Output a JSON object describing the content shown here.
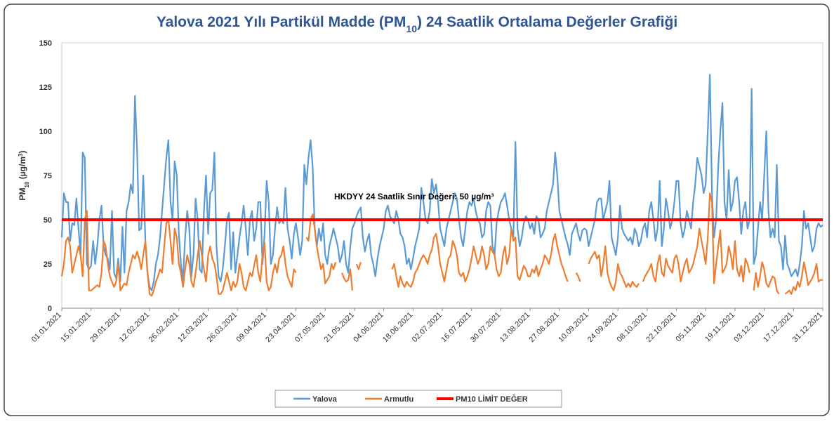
{
  "chart_data": {
    "type": "line",
    "title_parts": [
      "Yalova 2021 Yılı Partikül Madde (PM",
      "10",
      ") 24 Saatlik Ortalama Değerler Grafiği"
    ],
    "y_label_parts": [
      "PM",
      "10",
      "  (µg/m",
      "3",
      ")"
    ],
    "categories": [
      "01.01.2021",
      null,
      null,
      null,
      null,
      null,
      null,
      null,
      null,
      null,
      null,
      null,
      null,
      null,
      "15.01.2021",
      null,
      null,
      null,
      null,
      null,
      null,
      null,
      null,
      null,
      null,
      null,
      null,
      null,
      "29.01.2021",
      null,
      null,
      null,
      null,
      null,
      null,
      null,
      null,
      null,
      null,
      null,
      null,
      null,
      "12.02.2021",
      null,
      null,
      null,
      null,
      null,
      null,
      null,
      null,
      null,
      null,
      null,
      null,
      null,
      "26.02.2021",
      null,
      null,
      null,
      null,
      null,
      null,
      null,
      null,
      null,
      null,
      null,
      null,
      null,
      "12.03.2021",
      null,
      null,
      null,
      null,
      null,
      null,
      null,
      null,
      null,
      null,
      null,
      null,
      null,
      "26.03.2021",
      null,
      null,
      null,
      null,
      null,
      null,
      null,
      null,
      null,
      null,
      null,
      null,
      null,
      "09.04.2021",
      null,
      null,
      null,
      null,
      null,
      null,
      null,
      null,
      null,
      null,
      null,
      null,
      null,
      "23.04.2021",
      null,
      null,
      null,
      null,
      null,
      null,
      null,
      null,
      null,
      null,
      null,
      null,
      null,
      "07.05.2021",
      null,
      null,
      null,
      null,
      null,
      null,
      null,
      null,
      null,
      null,
      null,
      null,
      null,
      "21.05.2021",
      null,
      null,
      null,
      null,
      null,
      null,
      null,
      null,
      null,
      null,
      null,
      null,
      null,
      "04.06.2021",
      null,
      null,
      null,
      null,
      null,
      null,
      null,
      null,
      null,
      null,
      null,
      null,
      null,
      "18.06.2021",
      null,
      null,
      null,
      null,
      null,
      null,
      null,
      null,
      null,
      null,
      null,
      null,
      null,
      "02.07.2021",
      null,
      null,
      null,
      null,
      null,
      null,
      null,
      null,
      null,
      null,
      null,
      null,
      null,
      "16.07.2021",
      null,
      null,
      null,
      null,
      null,
      null,
      null,
      null,
      null,
      null,
      null,
      null,
      null,
      "30.07.2021",
      null,
      null,
      null,
      null,
      null,
      null,
      null,
      null,
      null,
      null,
      null,
      null,
      null,
      "13.08.2021",
      null,
      null,
      null,
      null,
      null,
      null,
      null,
      null,
      null,
      null,
      null,
      null,
      null,
      "27.08.2021",
      null,
      null,
      null,
      null,
      null,
      null,
      null,
      null,
      null,
      null,
      null,
      null,
      null,
      "10.09.2021",
      null,
      null,
      null,
      null,
      null,
      null,
      null,
      null,
      null,
      null,
      null,
      null,
      null,
      "24.09.2021",
      null,
      null,
      null,
      null,
      null,
      null,
      null,
      null,
      null,
      null,
      null,
      null,
      null,
      "08.10.2021",
      null,
      null,
      null,
      null,
      null,
      null,
      null,
      null,
      null,
      null,
      null,
      null,
      null,
      "22.10.2021",
      null,
      null,
      null,
      null,
      null,
      null,
      null,
      null,
      null,
      null,
      null,
      null,
      null,
      "05.11.2021",
      null,
      null,
      null,
      null,
      null,
      null,
      null,
      null,
      null,
      null,
      null,
      null,
      null,
      "19.11.2021",
      null,
      null,
      null,
      null,
      null,
      null,
      null,
      null,
      null,
      null,
      null,
      null,
      null,
      "03.12.2021",
      null,
      null,
      null,
      null,
      null,
      null,
      null,
      null,
      null,
      null,
      null,
      null,
      null,
      "17.12.2021",
      null,
      null,
      null,
      null,
      null,
      null,
      null,
      null,
      null,
      null,
      null,
      null,
      null,
      "31.12.2021"
    ],
    "series": [
      {
        "name": "Yalova",
        "color": "#5b9bd5",
        "values": [
          40,
          65,
          60,
          60,
          38,
          48,
          47,
          62,
          45,
          30,
          88,
          85,
          25,
          22,
          24,
          38,
          25,
          35,
          50,
          58,
          35,
          30,
          28,
          22,
          55,
          20,
          17,
          28,
          15,
          46,
          20,
          55,
          60,
          70,
          65,
          120,
          90,
          44,
          45,
          75,
          38,
          20,
          12,
          10,
          15,
          25,
          30,
          40,
          55,
          70,
          85,
          95,
          60,
          50,
          83,
          75,
          42,
          25,
          16,
          40,
          55,
          45,
          18,
          30,
          62,
          50,
          22,
          20,
          55,
          75,
          42,
          65,
          67,
          88,
          35,
          18,
          15,
          22,
          35,
          50,
          54,
          22,
          43,
          20,
          30,
          40,
          48,
          58,
          45,
          30,
          50,
          55,
          38,
          45,
          60,
          60,
          25,
          42,
          72,
          60,
          25,
          30,
          45,
          57,
          48,
          50,
          48,
          68,
          45,
          38,
          28,
          42,
          48,
          40,
          30,
          38,
          81,
          70,
          85,
          95,
          80,
          45,
          35,
          45,
          38,
          48,
          30,
          25,
          35,
          40,
          45,
          40,
          35,
          26,
          30,
          38,
          25,
          20,
          35,
          45,
          48,
          52,
          55,
          57,
          40,
          32,
          38,
          42,
          30,
          25,
          18,
          28,
          35,
          40,
          45,
          55,
          58,
          52,
          50,
          48,
          55,
          50,
          42,
          40,
          35,
          25,
          28,
          22,
          28,
          35,
          40,
          45,
          68,
          60,
          50,
          48,
          55,
          73,
          65,
          70,
          60,
          45,
          40,
          35,
          45,
          50,
          55,
          60,
          65,
          62,
          50,
          40,
          35,
          45,
          55,
          60,
          58,
          62,
          55,
          50,
          48,
          40,
          42,
          55,
          60,
          58,
          35,
          30,
          48,
          55,
          60,
          62,
          65,
          58,
          50,
          45,
          40,
          94,
          45,
          35,
          40,
          48,
          52,
          50,
          45,
          48,
          42,
          52,
          50,
          40,
          42,
          45,
          55,
          60,
          65,
          70,
          88,
          75,
          55,
          50,
          45,
          40,
          36,
          30,
          42,
          45,
          48,
          42,
          38,
          44,
          45,
          44,
          35,
          40,
          45,
          50,
          60,
          62,
          62,
          50,
          55,
          60,
          72,
          40,
          35,
          30,
          40,
          58,
          45,
          42,
          40,
          38,
          40,
          36,
          45,
          42,
          35,
          38,
          45,
          48,
          40,
          55,
          60,
          50,
          38,
          45,
          72,
          35,
          45,
          62,
          55,
          45,
          50,
          60,
          72,
          72,
          48,
          40,
          45,
          55,
          50,
          45,
          60,
          70,
          85,
          80,
          75,
          65,
          70,
          100,
          132,
          65,
          40,
          50,
          80,
          100,
          116,
          60,
          50,
          78,
          55,
          60,
          72,
          74,
          60,
          42,
          55,
          60,
          45,
          50,
          124,
          25,
          30,
          45,
          60,
          50,
          75,
          100,
          55,
          40,
          45,
          40,
          81,
          38,
          35,
          22,
          41,
          25,
          22,
          18,
          20,
          22,
          18,
          25,
          35,
          55,
          45,
          48,
          40,
          32,
          35,
          45,
          48,
          46,
          47
        ]
      },
      {
        "name": "Armutlu",
        "color": "#ed7d31",
        "values": [
          18,
          25,
          38,
          40,
          35,
          20,
          25,
          30,
          35,
          30,
          18,
          50,
          55,
          10,
          10,
          11,
          12,
          13,
          12,
          20,
          38,
          35,
          25,
          18,
          15,
          12,
          15,
          25,
          10,
          12,
          14,
          13,
          20,
          25,
          30,
          28,
          32,
          28,
          22,
          30,
          38,
          20,
          8,
          7,
          10,
          15,
          18,
          22,
          20,
          35,
          48,
          50,
          38,
          25,
          45,
          40,
          25,
          20,
          12,
          22,
          30,
          25,
          15,
          12,
          20,
          30,
          38,
          30,
          22,
          15,
          30,
          35,
          28,
          25,
          18,
          8,
          8,
          10,
          15,
          20,
          15,
          10,
          15,
          12,
          15,
          25,
          20,
          12,
          10,
          15,
          20,
          18,
          24,
          30,
          20,
          15,
          30,
          37,
          15,
          10,
          12,
          20,
          25,
          20,
          28,
          30,
          35,
          25,
          18,
          15,
          12,
          22,
          20,
          null,
          17,
          null,
          null,
          40,
          38,
          50,
          53,
          45,
          35,
          28,
          22,
          25,
          14,
          16,
          18,
          25,
          22,
          26,
          null,
          null,
          20,
          17,
          15,
          16,
          22,
          10,
          null,
          25,
          22,
          26,
          null,
          null,
          null,
          null,
          null,
          null,
          null,
          null,
          null,
          null,
          null,
          null,
          null,
          null,
          22,
          25,
          18,
          12,
          18,
          14,
          12,
          15,
          13,
          12,
          15,
          20,
          22,
          25,
          28,
          30,
          28,
          25,
          30,
          33,
          40,
          42,
          35,
          25,
          20,
          15,
          22,
          28,
          30,
          38,
          35,
          30,
          20,
          18,
          20,
          15,
          18,
          22,
          28,
          35,
          30,
          25,
          28,
          35,
          30,
          22,
          25,
          35,
          32,
          30,
          22,
          18,
          20,
          30,
          35,
          25,
          30,
          45,
          38,
          40,
          18,
          16,
          20,
          24,
          22,
          18,
          18,
          22,
          20,
          24,
          18,
          22,
          25,
          30,
          28,
          25,
          30,
          38,
          42,
          35,
          30,
          25,
          22,
          18,
          15,
          null,
          null,
          null,
          20,
          18,
          15,
          null,
          null,
          null,
          25,
          28,
          30,
          32,
          28,
          30,
          18,
          25,
          35,
          20,
          15,
          12,
          10,
          15,
          25,
          20,
          18,
          15,
          12,
          14,
          12,
          15,
          13,
          12,
          14,
          null,
          15,
          18,
          20,
          22,
          25,
          18,
          15,
          25,
          30,
          20,
          18,
          28,
          24,
          22,
          20,
          28,
          30,
          25,
          15,
          20,
          25,
          28,
          20,
          22,
          25,
          30,
          35,
          45,
          38,
          32,
          25,
          40,
          65,
          60,
          14,
          25,
          35,
          44,
          20,
          22,
          25,
          35,
          30,
          22,
          38,
          22,
          18,
          24,
          15,
          28,
          25,
          20,
          null,
          10,
          20,
          12,
          18,
          26,
          22,
          14,
          12,
          15,
          18,
          17,
          10,
          8,
          null,
          null,
          8,
          9,
          10,
          8,
          12,
          10,
          15,
          12,
          18,
          26,
          20,
          13,
          15,
          17,
          20,
          25,
          15,
          16,
          16
        ]
      }
    ],
    "limit": {
      "name": "PM10 LİMİT DEĞER",
      "value": 50,
      "color": "#ff0000",
      "label": "HKDYY 24 Saatlik Sınır Değeri: 50 µg/m³"
    },
    "ylim": [
      0,
      150
    ],
    "yticks": [
      0,
      25,
      50,
      75,
      100,
      125,
      150
    ],
    "grid": false,
    "legend": "bottom"
  }
}
